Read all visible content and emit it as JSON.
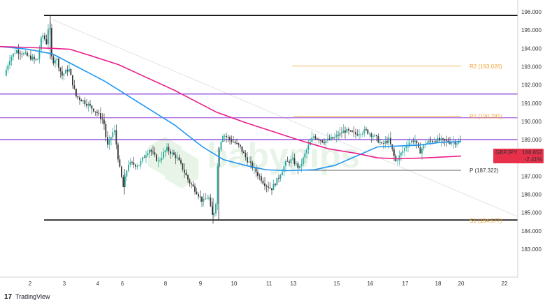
{
  "chart_data": {
    "type": "candlestick",
    "symbol": "GBPJPY",
    "last_price": "188.852",
    "change": "-2.41%",
    "y_axis_labels": [
      "196.000",
      "195.000",
      "194.000",
      "193.000",
      "192.000",
      "191.000",
      "190.000",
      "189.000",
      "188.000",
      "187.000",
      "186.000",
      "185.000",
      "184.000",
      "183.000"
    ],
    "ylim": [
      182.5,
      196.3
    ],
    "x_axis_labels": [
      "2",
      "3",
      "4",
      "6",
      "8",
      "9",
      "10",
      "11",
      "13",
      "15",
      "16",
      "17",
      "18",
      "20",
      "22"
    ],
    "levels": [
      {
        "name": "R2",
        "label": "R2 (193.026)",
        "value": 193.026,
        "color": "#f0a030"
      },
      {
        "name": "R1",
        "label": "R1 (190.281)",
        "value": 190.281,
        "color": "#f0a030"
      },
      {
        "name": "P",
        "label": "P (187.322)",
        "value": 187.322,
        "color": "#333333"
      },
      {
        "name": "S1",
        "label": "S1 (184.577)",
        "value": 184.577,
        "color": "#f0a030"
      }
    ],
    "horizontal_lines": [
      {
        "value": 195.8,
        "color": "#000000"
      },
      {
        "value": 191.5,
        "color": "#8e44d9"
      },
      {
        "value": 190.2,
        "color": "#b070e0"
      },
      {
        "value": 189.0,
        "color": "#8e44d9"
      },
      {
        "value": 184.6,
        "color": "#000000"
      }
    ],
    "moving_averages": [
      {
        "color": "#2196f3",
        "points": [
          [
            0,
            194.1
          ],
          [
            40,
            193.95
          ],
          [
            75,
            193.7
          ],
          [
            110,
            193.0
          ],
          [
            150,
            192.2
          ],
          [
            200,
            191.0
          ],
          [
            250,
            189.8
          ],
          [
            290,
            188.6
          ],
          [
            320,
            187.9
          ],
          [
            350,
            187.6
          ],
          [
            380,
            187.35
          ],
          [
            410,
            187.3
          ],
          [
            450,
            187.35
          ],
          [
            480,
            187.6
          ],
          [
            510,
            188.1
          ],
          [
            540,
            188.6
          ],
          [
            570,
            188.65
          ],
          [
            600,
            188.7
          ],
          [
            630,
            188.85
          ],
          [
            660,
            188.9
          ]
        ]
      },
      {
        "color": "#e91e8c",
        "points": [
          [
            0,
            194.1
          ],
          [
            40,
            194.05
          ],
          [
            75,
            194.0
          ],
          [
            100,
            193.95
          ],
          [
            130,
            193.6
          ],
          [
            170,
            193.1
          ],
          [
            210,
            192.4
          ],
          [
            250,
            191.7
          ],
          [
            280,
            191.1
          ],
          [
            310,
            190.5
          ],
          [
            350,
            189.95
          ],
          [
            390,
            189.45
          ],
          [
            430,
            188.95
          ],
          [
            470,
            188.5
          ],
          [
            510,
            188.25
          ],
          [
            540,
            188.0
          ],
          [
            570,
            187.95
          ],
          [
            610,
            188.0
          ],
          [
            660,
            188.1
          ]
        ]
      }
    ],
    "series_path": [
      [
        8,
        192.5
      ],
      [
        15,
        193.4
      ],
      [
        25,
        193.9
      ],
      [
        40,
        193.6
      ],
      [
        55,
        193.3
      ],
      [
        62,
        194.8
      ],
      [
        68,
        194.3
      ],
      [
        72,
        195.6
      ],
      [
        76,
        193.2
      ],
      [
        82,
        193.5
      ],
      [
        90,
        192.5
      ],
      [
        100,
        192.9
      ],
      [
        110,
        191.4
      ],
      [
        125,
        191.0
      ],
      [
        140,
        190.5
      ],
      [
        150,
        190.0
      ],
      [
        155,
        188.6
      ],
      [
        165,
        189.6
      ],
      [
        172,
        187.6
      ],
      [
        178,
        186.4
      ],
      [
        185,
        187.7
      ],
      [
        200,
        187.6
      ],
      [
        215,
        188.5
      ],
      [
        228,
        187.8
      ],
      [
        240,
        188.5
      ],
      [
        255,
        188.0
      ],
      [
        262,
        187.5
      ],
      [
        272,
        186.7
      ],
      [
        282,
        186.2
      ],
      [
        292,
        185.6
      ],
      [
        300,
        185.9
      ],
      [
        305,
        184.8
      ],
      [
        310,
        185.2
      ],
      [
        314,
        188.3
      ],
      [
        320,
        189.3
      ],
      [
        335,
        188.9
      ],
      [
        345,
        188.6
      ],
      [
        355,
        187.9
      ],
      [
        365,
        187.4
      ],
      [
        380,
        186.6
      ],
      [
        390,
        186.3
      ],
      [
        400,
        186.9
      ],
      [
        410,
        187.7
      ],
      [
        420,
        187.9
      ],
      [
        430,
        187.4
      ],
      [
        440,
        188.4
      ],
      [
        450,
        189.2
      ],
      [
        465,
        188.9
      ],
      [
        480,
        189.1
      ],
      [
        495,
        189.5
      ],
      [
        510,
        189.3
      ],
      [
        525,
        189.5
      ],
      [
        540,
        189.1
      ],
      [
        548,
        188.7
      ],
      [
        558,
        189.0
      ],
      [
        568,
        187.8
      ],
      [
        575,
        188.2
      ],
      [
        585,
        188.8
      ],
      [
        595,
        189.0
      ],
      [
        602,
        188.3
      ],
      [
        610,
        188.8
      ],
      [
        625,
        189.0
      ],
      [
        640,
        188.9
      ],
      [
        658,
        188.85
      ]
    ],
    "watermark": "babypips"
  },
  "footer": {
    "brand": "TradingView"
  }
}
